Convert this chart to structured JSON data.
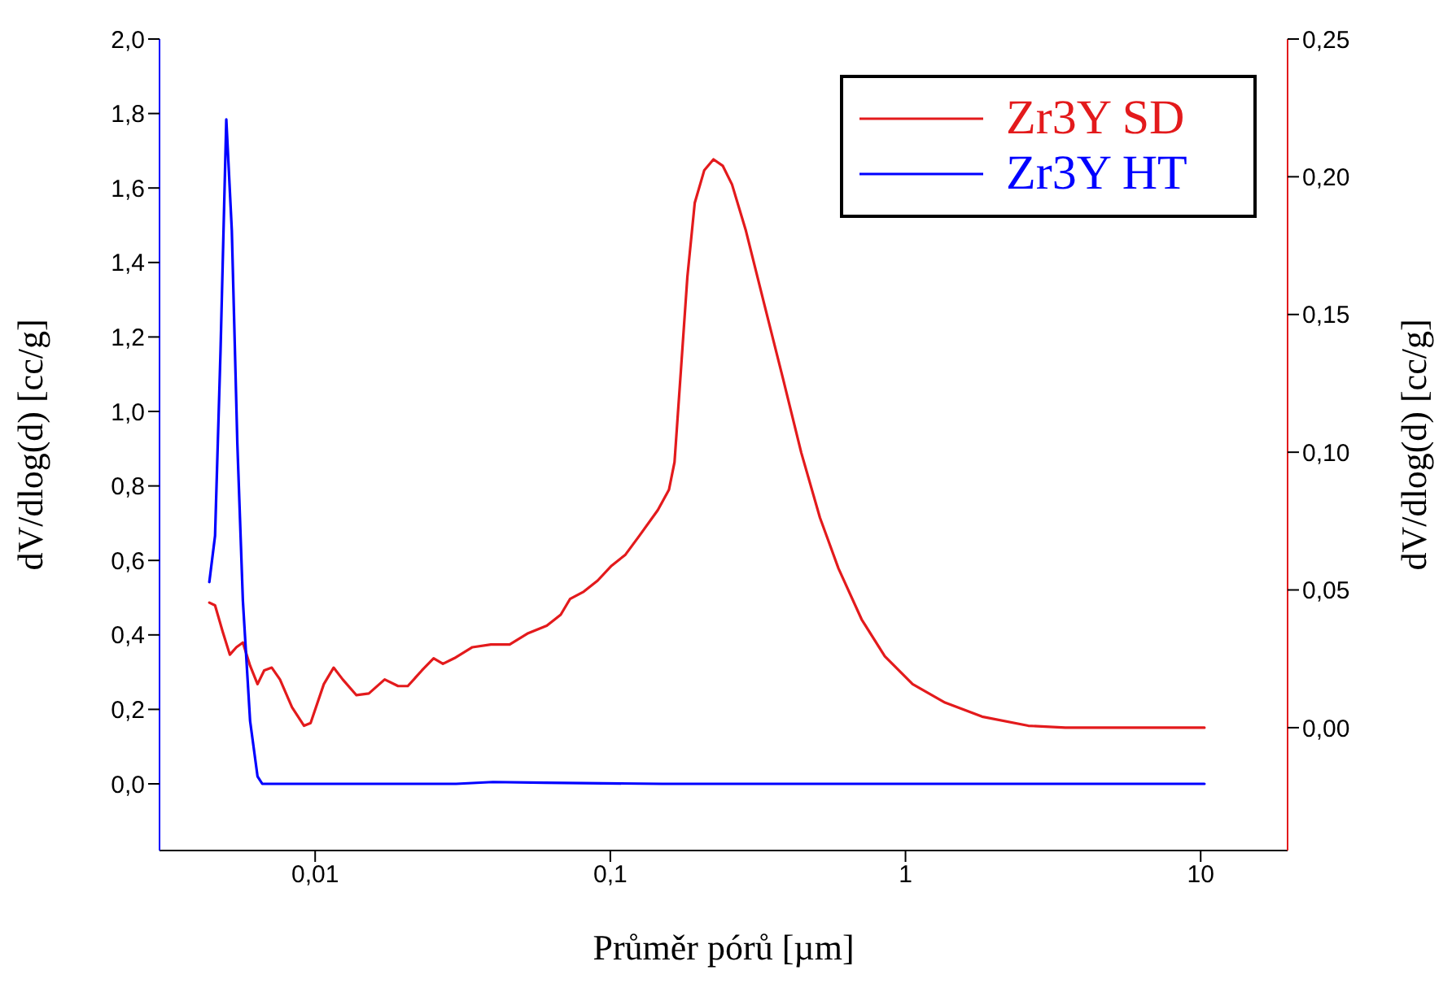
{
  "chart_data": {
    "type": "line",
    "xlabel": "Průměr pórů [µm]",
    "ylabel": "dV/dlog(d) [cc/g]",
    "y2label": "dV/dlog(d) [cc/g]",
    "log": "x",
    "legend": "top right",
    "grid": false,
    "marker": "none",
    "line_style": "solid",
    "xlim": [
      0.00297,
      19.7
    ],
    "xticks": [
      {
        "value": 0.01,
        "label": "0,01"
      },
      {
        "value": 0.1,
        "label": "0,1"
      },
      {
        "value": 1,
        "label": "1"
      },
      {
        "value": 10,
        "label": "10"
      }
    ],
    "ylim": [
      -0.179,
      2.0
    ],
    "yticks": [
      {
        "value": 0,
        "label": "0,0"
      },
      {
        "value": 0.2,
        "label": "0,2"
      },
      {
        "value": 0.4,
        "label": "0,4"
      },
      {
        "value": 0.6,
        "label": "0,6"
      },
      {
        "value": 0.8,
        "label": "0,8"
      },
      {
        "value": 1.0,
        "label": "1,0"
      },
      {
        "value": 1.2,
        "label": "1,2"
      },
      {
        "value": 1.4,
        "label": "1,4"
      },
      {
        "value": 1.6,
        "label": "1,6"
      },
      {
        "value": 1.8,
        "label": "1,8"
      },
      {
        "value": 2.0,
        "label": "2,0"
      }
    ],
    "y2lim": [
      -0.0446,
      0.25
    ],
    "y2ticks": [
      {
        "value": 0,
        "label": "0,00"
      },
      {
        "value": 0.05,
        "label": "0,05"
      },
      {
        "value": 0.1,
        "label": "0,10"
      },
      {
        "value": 0.15,
        "label": "0,15"
      },
      {
        "value": 0.2,
        "label": "0,20"
      },
      {
        "value": 0.25,
        "label": "0,25"
      }
    ],
    "series": [
      {
        "name": "Zr3Y SD",
        "color": "#e31a1c",
        "axis": "y2",
        "x": [
          0.00438,
          0.00458,
          0.00486,
          0.00514,
          0.00541,
          0.00569,
          0.00602,
          0.00638,
          0.00672,
          0.00713,
          0.0076,
          0.00835,
          0.00917,
          0.00965,
          0.0107,
          0.01155,
          0.0124,
          0.0138,
          0.0152,
          0.0172,
          0.0191,
          0.0206,
          0.023,
          0.0252,
          0.0271,
          0.0296,
          0.0341,
          0.0394,
          0.0456,
          0.0527,
          0.0609,
          0.0679,
          0.073,
          0.0813,
          0.0906,
          0.101,
          0.1125,
          0.1253,
          0.1449,
          0.158,
          0.165,
          0.1735,
          0.1824,
          0.1932,
          0.208,
          0.2236,
          0.2403,
          0.2584,
          0.288,
          0.3326,
          0.3846,
          0.4436,
          0.5129,
          0.5929,
          0.7102,
          0.851,
          1.057,
          1.361,
          1.817,
          2.606,
          3.48,
          10.3
        ],
        "values": [
          0.0454,
          0.0444,
          0.0349,
          0.0265,
          0.0292,
          0.0309,
          0.0225,
          0.0158,
          0.0208,
          0.0218,
          0.0175,
          0.0074,
          0.0007,
          0.0017,
          0.0158,
          0.0218,
          0.0175,
          0.0118,
          0.0124,
          0.0175,
          0.0151,
          0.0151,
          0.0208,
          0.0252,
          0.0232,
          0.0252,
          0.0292,
          0.0302,
          0.0302,
          0.0343,
          0.037,
          0.041,
          0.0467,
          0.0494,
          0.0534,
          0.0588,
          0.0628,
          0.0696,
          0.079,
          0.0864,
          0.0964,
          0.13,
          0.1636,
          0.1905,
          0.2023,
          0.2063,
          0.204,
          0.1972,
          0.1804,
          0.1536,
          0.1267,
          0.0998,
          0.0763,
          0.0578,
          0.0393,
          0.0259,
          0.0158,
          0.0091,
          0.004,
          0.0007,
          0,
          0
        ]
      },
      {
        "name": "Zr3Y HT",
        "color": "#0000ff",
        "x": [
          0.00438,
          0.00458,
          0.00478,
          0.005,
          0.00522,
          0.00545,
          0.00569,
          0.00602,
          0.00638,
          0.00662,
          0.03,
          0.04,
          0.06,
          0.15,
          10.3
        ],
        "values": [
          0.542,
          0.666,
          1.163,
          1.784,
          1.486,
          0.914,
          0.492,
          0.169,
          0.02,
          0,
          0,
          0.005,
          0.003,
          0,
          0
        ]
      }
    ]
  }
}
